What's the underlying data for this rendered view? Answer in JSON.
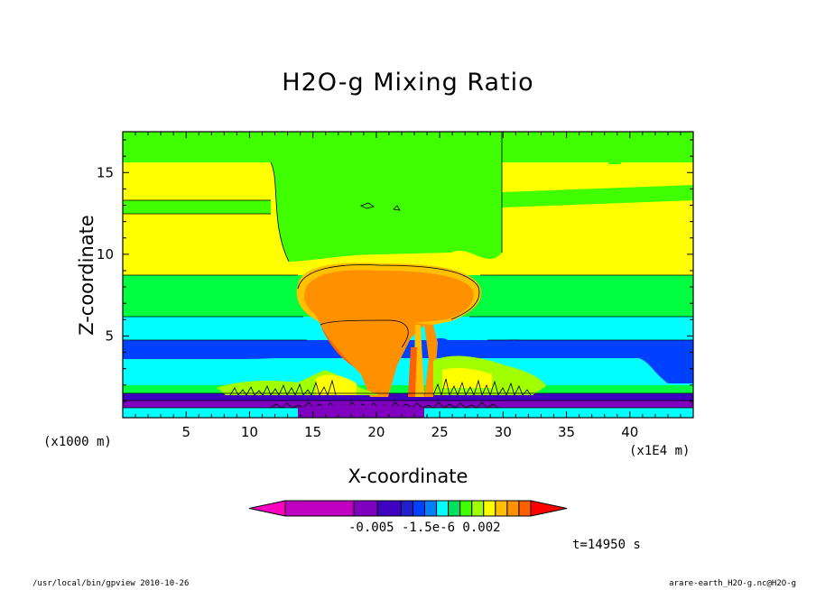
{
  "chart_data": {
    "type": "heatmap",
    "title": "H2O-g Mixing Ratio",
    "xlabel": "X-coordinate",
    "ylabel": "Z-coordinate",
    "x_unit": "(x1000 m)",
    "x_scale_note": "(x1E4 m)",
    "xlim": [
      0,
      45
    ],
    "ylim": [
      0,
      17.5
    ],
    "x_ticks": [
      "5",
      "10",
      "15",
      "20",
      "25",
      "30",
      "35",
      "40"
    ],
    "y_ticks": [
      "5",
      "10",
      "15"
    ],
    "colorbar_labels": "-0.005  -1.5e-6  0.002",
    "colorbar_colors": [
      "#ff00c0",
      "#c000c0",
      "#8000c0",
      "#4000c0",
      "#2020d0",
      "#0040ff",
      "#0080ff",
      "#00ffff",
      "#00e060",
      "#40ff00",
      "#a0ff00",
      "#ffff00",
      "#ffc000",
      "#ff9000",
      "#ff6000",
      "#ff0000"
    ],
    "time_label": "t=14950 s"
  },
  "footer": {
    "left": "/usr/local/bin/gpview  2010-10-26",
    "right": "arare-earth_H2O-g.nc@H2O-g"
  }
}
